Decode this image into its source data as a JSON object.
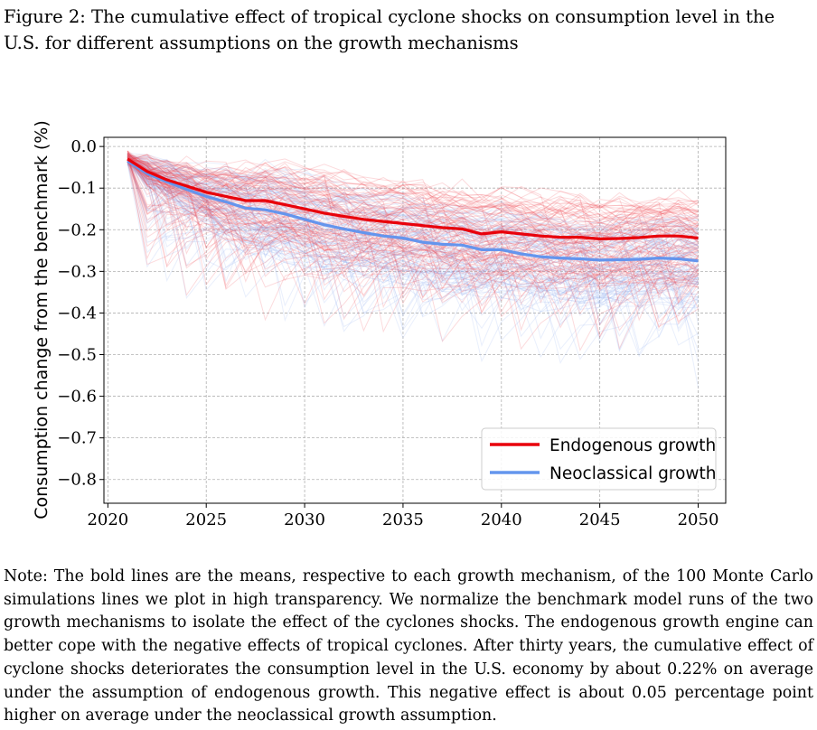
{
  "caption": "Figure 2: The cumulative effect of tropical cyclone shocks on consumption level in the U.S. for different assumptions on the growth mechanisms",
  "note": "Note: The bold lines are the means, respective to each growth mechanism, of the 100 Monte Carlo simulations lines we plot in high transparency. We normalize the benchmark model runs of the two growth mechanisms to isolate the effect of the cyclones shocks. The endogenous growth engine can better cope with the negative effects of tropical cyclones. After thirty years, the cumulative effect of cyclone shocks deteriorates the consumption level in the U.S. economy by about 0.22% on average under the assumption of endogenous growth. This negative effect is about 0.05 percentage point higher on average under the neoclassical growth assumption.",
  "chart_data": {
    "type": "line",
    "title": "",
    "xlabel": "",
    "ylabel": "Consumption change from the benchmark (%)",
    "xlim": [
      2019.8,
      2051.4
    ],
    "ylim": [
      -0.857,
      0.022
    ],
    "xticks": [
      2020,
      2025,
      2030,
      2035,
      2040,
      2045,
      2050
    ],
    "xtick_labels": [
      "2020",
      "2025",
      "2030",
      "2035",
      "2040",
      "2045",
      "2050"
    ],
    "yticks": [
      0.0,
      -0.1,
      -0.2,
      -0.3,
      -0.4,
      -0.5,
      -0.6,
      -0.7,
      -0.8
    ],
    "ytick_labels": [
      "0.0",
      "−0.1",
      "−0.2",
      "−0.3",
      "−0.4",
      "−0.5",
      "−0.6",
      "−0.7",
      "−0.8"
    ],
    "grid": true,
    "legend_position": "bottom-right",
    "x": [
      2021,
      2022,
      2023,
      2024,
      2025,
      2026,
      2027,
      2028,
      2029,
      2030,
      2031,
      2032,
      2033,
      2034,
      2035,
      2036,
      2037,
      2038,
      2039,
      2040,
      2041,
      2042,
      2043,
      2044,
      2045,
      2046,
      2047,
      2048,
      2049,
      2050
    ],
    "series": [
      {
        "name": "Endogenous growth",
        "color": "#e8000b",
        "values": [
          -0.03,
          -0.06,
          -0.08,
          -0.095,
          -0.11,
          -0.12,
          -0.13,
          -0.13,
          -0.14,
          -0.15,
          -0.16,
          -0.168,
          -0.175,
          -0.18,
          -0.185,
          -0.19,
          -0.195,
          -0.198,
          -0.21,
          -0.205,
          -0.21,
          -0.215,
          -0.218,
          -0.218,
          -0.222,
          -0.221,
          -0.219,
          -0.215,
          -0.215,
          -0.22
        ]
      },
      {
        "name": "Neoclassical growth",
        "color": "#6495ed",
        "values": [
          -0.035,
          -0.065,
          -0.085,
          -0.103,
          -0.12,
          -0.133,
          -0.148,
          -0.152,
          -0.162,
          -0.175,
          -0.188,
          -0.198,
          -0.207,
          -0.215,
          -0.22,
          -0.23,
          -0.235,
          -0.237,
          -0.248,
          -0.248,
          -0.258,
          -0.265,
          -0.268,
          -0.27,
          -0.273,
          -0.272,
          -0.271,
          -0.268,
          -0.27,
          -0.275
        ]
      }
    ],
    "simulation_runs_per_series": 100
  }
}
